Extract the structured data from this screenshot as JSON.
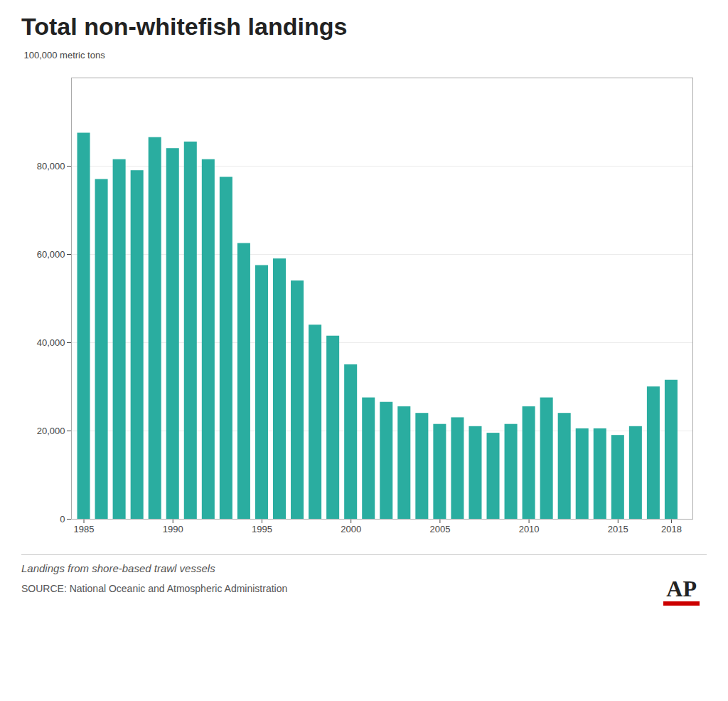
{
  "chart_data": {
    "type": "bar",
    "title": "Total non-whitefish landings",
    "ylabel": "100,000 metric tons",
    "subtitle": "Landings from shore-based trawl vessels",
    "annotations": [
      "SOURCE: National Oceanic and Atmospheric Administration",
      "AP"
    ],
    "x": [
      1985,
      1986,
      1987,
      1988,
      1989,
      1990,
      1991,
      1992,
      1993,
      1994,
      1995,
      1996,
      1997,
      1998,
      1999,
      2000,
      2001,
      2002,
      2003,
      2004,
      2005,
      2006,
      2007,
      2008,
      2009,
      2010,
      2011,
      2012,
      2013,
      2014,
      2015,
      2016,
      2017,
      2018
    ],
    "values": [
      87500,
      77000,
      81500,
      79000,
      86500,
      84000,
      85500,
      81500,
      77500,
      62500,
      57500,
      59000,
      54000,
      44000,
      41500,
      35000,
      27500,
      26500,
      25500,
      24000,
      21500,
      23000,
      21000,
      19500,
      21500,
      25500,
      27500,
      24000,
      20500,
      20500,
      19000,
      21000,
      30000,
      31500
    ],
    "color": "#2aada0",
    "xlim": [
      1984.3,
      2019.2
    ],
    "xticks": [
      1985,
      1990,
      1995,
      2000,
      2005,
      2010,
      2015,
      2018
    ],
    "ylim": [
      0,
      100000
    ],
    "yticks": [
      0,
      {
        "value": 20000,
        "label": "20,000"
      },
      {
        "value": 40000,
        "label": "40,000"
      },
      {
        "value": 60000,
        "label": "60,000"
      },
      {
        "value": 80000,
        "label": "80,000"
      }
    ],
    "grid": true
  }
}
